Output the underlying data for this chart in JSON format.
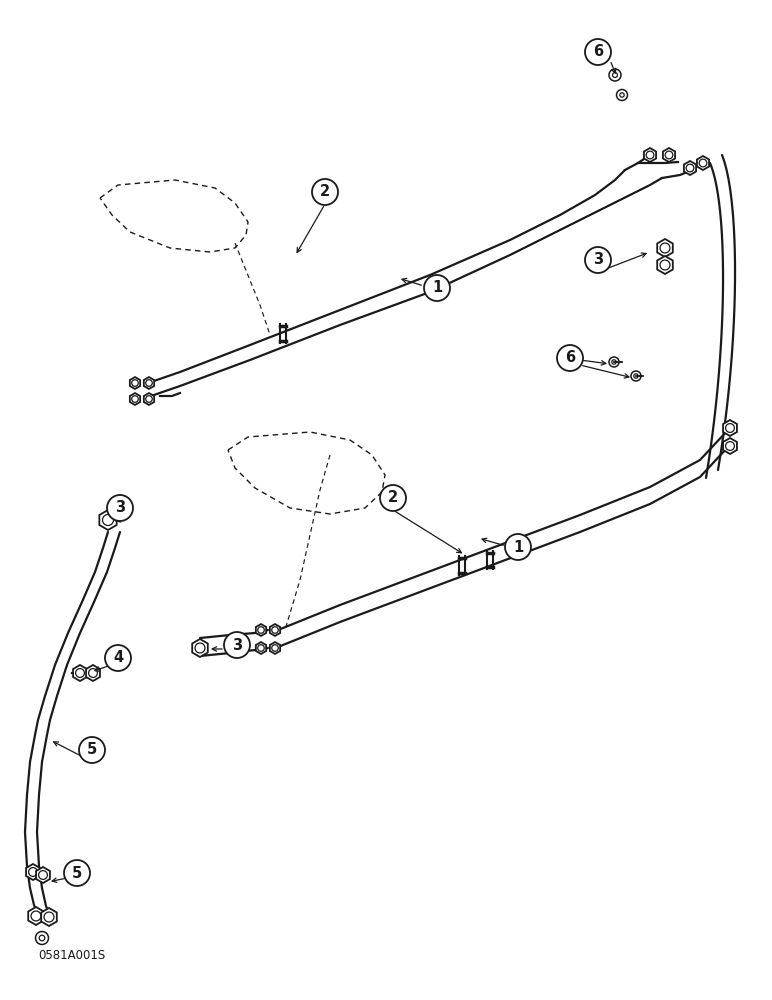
{
  "bg_color": "#ffffff",
  "line_color": "#1a1a1a",
  "part_code": "0581A001S",
  "fig_w": 7.72,
  "fig_h": 10.0,
  "dpi": 100
}
